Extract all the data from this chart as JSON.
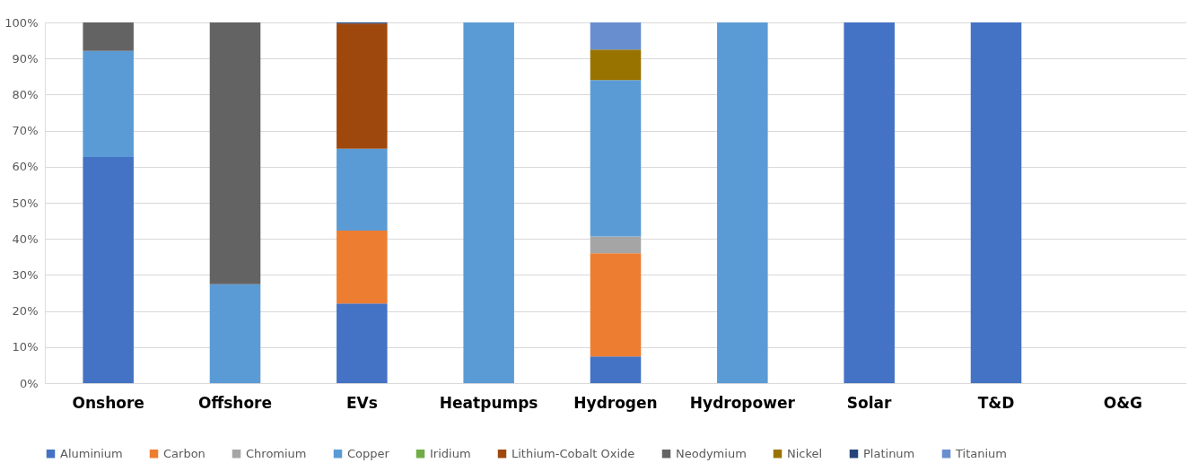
{
  "chart_data": {
    "type": "bar",
    "stacked": true,
    "categories": [
      "Onshore",
      "Offshore",
      "EVs",
      "Heatpumps",
      "Hydrogen",
      "Hydropower",
      "Solar",
      "T&D",
      "O&G"
    ],
    "series": [
      {
        "name": "Aluminium",
        "color": "#4472c4",
        "values": [
          62.7,
          null,
          22.1,
          null,
          7.4,
          null,
          100,
          100,
          null
        ]
      },
      {
        "name": "Carbon",
        "color": "#ed7d31",
        "values": [
          null,
          null,
          20.2,
          null,
          28.6,
          null,
          null,
          null,
          null
        ]
      },
      {
        "name": "Chromium",
        "color": "#a5a5a5",
        "values": [
          null,
          null,
          null,
          null,
          4.7,
          null,
          null,
          null,
          null
        ]
      },
      {
        "name": "Copper",
        "color": "#5b9bd5",
        "values": [
          29.4,
          27.4,
          22.7,
          100,
          43.3,
          100,
          null,
          null,
          null
        ]
      },
      {
        "name": "Iridium",
        "color": "#70ad47",
        "values": [
          null,
          null,
          null,
          null,
          null,
          null,
          null,
          null,
          null
        ]
      },
      {
        "name": "Lithium-Cobalt Oxide",
        "color": "#9e480e",
        "values": [
          null,
          null,
          34.7,
          null,
          null,
          null,
          null,
          null,
          null
        ]
      },
      {
        "name": "Neodymium",
        "color": "#636363",
        "values": [
          7.9,
          72.6,
          null,
          null,
          null,
          null,
          null,
          null,
          null
        ]
      },
      {
        "name": "Nickel",
        "color": "#997300",
        "values": [
          null,
          null,
          null,
          null,
          8.5,
          null,
          null,
          null,
          null
        ]
      },
      {
        "name": "Platinum",
        "color": "#264478",
        "values": [
          null,
          null,
          0.3,
          null,
          null,
          null,
          null,
          null,
          null
        ]
      },
      {
        "name": "Titanium",
        "color": "#698ed0",
        "values": [
          null,
          null,
          null,
          null,
          7.5,
          null,
          null,
          null,
          null
        ]
      }
    ],
    "ylim": [
      0,
      100
    ],
    "yticks": [
      {
        "value": 0,
        "label": "0%"
      },
      {
        "value": 10,
        "label": "10%"
      },
      {
        "value": 20,
        "label": "20%"
      },
      {
        "value": 30,
        "label": "30%"
      },
      {
        "value": 40,
        "label": "40%"
      },
      {
        "value": 50,
        "label": "50%"
      },
      {
        "value": 60,
        "label": "60%"
      },
      {
        "value": 70,
        "label": "70%"
      },
      {
        "value": 80,
        "label": "80%"
      },
      {
        "value": 90,
        "label": "90%"
      },
      {
        "value": 100,
        "label": "100%"
      }
    ],
    "grid": "y",
    "legend": "bottom"
  }
}
